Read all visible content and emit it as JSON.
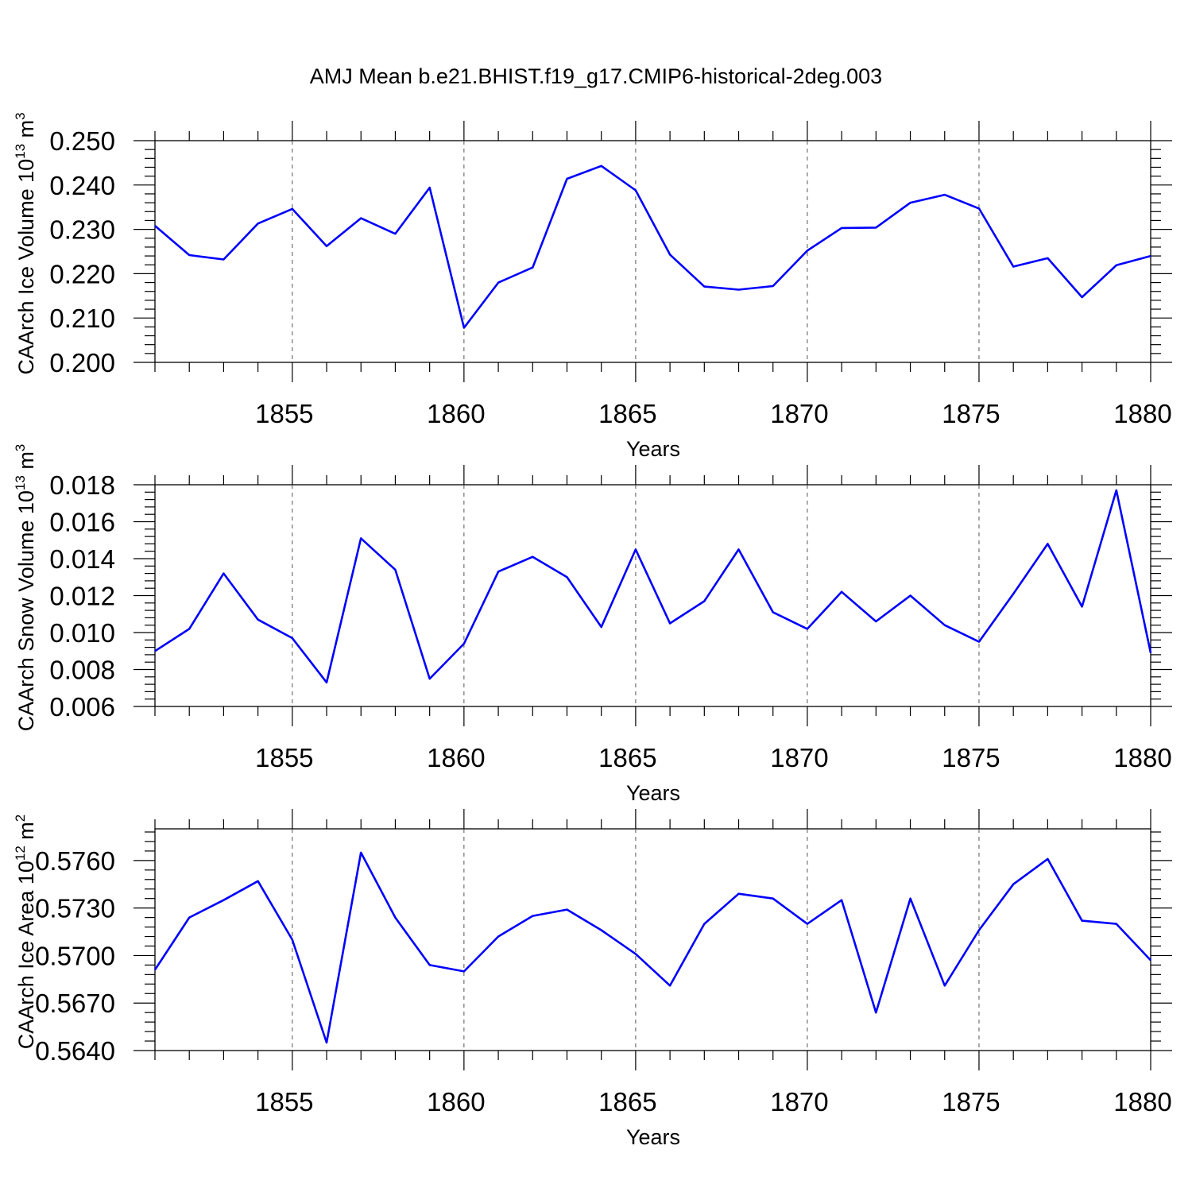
{
  "title": "AMJ Mean b.e21.BHIST.f19_g17.CMIP6-historical-2deg.003",
  "colors": {
    "line": "#0000ff",
    "grid": "#555555"
  },
  "chart_data": [
    {
      "type": "line",
      "name": "ice-volume",
      "xlabel": "Years",
      "ylabel_main": "CAArch Ice Volume 10",
      "ylabel_sup1": "13",
      "ylabel_mid": " m",
      "ylabel_sup2": "3",
      "xlim": [
        1851,
        1880
      ],
      "ylim": [
        0.2,
        0.25
      ],
      "xticks": [
        1855,
        1860,
        1865,
        1870,
        1875,
        1880
      ],
      "xtick_labels": [
        "1855",
        "1860",
        "1865",
        "1870",
        "1875",
        "1880"
      ],
      "yticks": [
        0.2,
        0.21,
        0.22,
        0.23,
        0.24,
        0.25
      ],
      "ytick_labels": [
        "0.200",
        "0.210",
        "0.220",
        "0.230",
        "0.240",
        "0.250"
      ],
      "x": [
        1851,
        1852,
        1853,
        1854,
        1855,
        1856,
        1857,
        1858,
        1859,
        1860,
        1861,
        1862,
        1863,
        1864,
        1865,
        1866,
        1867,
        1868,
        1869,
        1870,
        1871,
        1872,
        1873,
        1874,
        1875,
        1876,
        1877,
        1878,
        1879,
        1880
      ],
      "values": [
        0.2308,
        0.2242,
        0.2232,
        0.2313,
        0.2346,
        0.2262,
        0.2325,
        0.229,
        0.2394,
        0.2078,
        0.218,
        0.2214,
        0.2414,
        0.2443,
        0.2388,
        0.2243,
        0.2171,
        0.2164,
        0.2172,
        0.2252,
        0.2303,
        0.2304,
        0.236,
        0.2378,
        0.2347,
        0.2216,
        0.2235,
        0.2147,
        0.2219,
        0.224
      ],
      "grid": true
    },
    {
      "type": "line",
      "name": "snow-volume",
      "xlabel": "Years",
      "ylabel_main": "CAArch Snow Volume 10",
      "ylabel_sup1": "13",
      "ylabel_mid": " m",
      "ylabel_sup2": "3",
      "xlim": [
        1851,
        1880
      ],
      "ylim": [
        0.006,
        0.018
      ],
      "xticks": [
        1855,
        1860,
        1865,
        1870,
        1875,
        1880
      ],
      "xtick_labels": [
        "1855",
        "1860",
        "1865",
        "1870",
        "1875",
        "1880"
      ],
      "yticks": [
        0.006,
        0.008,
        0.01,
        0.012,
        0.014,
        0.016,
        0.018
      ],
      "ytick_labels": [
        "0.006",
        "0.008",
        "0.010",
        "0.012",
        "0.014",
        "0.016",
        "0.018"
      ],
      "x": [
        1851,
        1852,
        1853,
        1854,
        1855,
        1856,
        1857,
        1858,
        1859,
        1860,
        1861,
        1862,
        1863,
        1864,
        1865,
        1866,
        1867,
        1868,
        1869,
        1870,
        1871,
        1872,
        1873,
        1874,
        1875,
        1876,
        1877,
        1878,
        1879,
        1880
      ],
      "values": [
        0.009,
        0.0102,
        0.0132,
        0.0107,
        0.0097,
        0.0073,
        0.0151,
        0.0134,
        0.0075,
        0.0094,
        0.0133,
        0.0141,
        0.013,
        0.0103,
        0.0145,
        0.0105,
        0.0117,
        0.0145,
        0.0111,
        0.0102,
        0.0122,
        0.0106,
        0.012,
        0.0104,
        0.0095,
        0.0121,
        0.0148,
        0.0114,
        0.0177,
        0.0089
      ],
      "grid": true
    },
    {
      "type": "line",
      "name": "ice-area",
      "xlabel": "Years",
      "ylabel_main": "CAArch Ice Area 10",
      "ylabel_sup1": "12",
      "ylabel_mid": " m",
      "ylabel_sup2": "2",
      "xlim": [
        1851,
        1880
      ],
      "ylim": [
        0.564,
        0.578
      ],
      "xticks": [
        1855,
        1860,
        1865,
        1870,
        1875,
        1880
      ],
      "xtick_labels": [
        "1855",
        "1860",
        "1865",
        "1870",
        "1875",
        "1880"
      ],
      "yticks": [
        0.564,
        0.567,
        0.57,
        0.573,
        0.576
      ],
      "ytick_labels": [
        "0.5640",
        "0.5670",
        "0.5700",
        "0.5730",
        "0.5760"
      ],
      "x": [
        1851,
        1852,
        1853,
        1854,
        1855,
        1856,
        1857,
        1858,
        1859,
        1860,
        1861,
        1862,
        1863,
        1864,
        1865,
        1866,
        1867,
        1868,
        1869,
        1870,
        1871,
        1872,
        1873,
        1874,
        1875,
        1876,
        1877,
        1878,
        1879,
        1880
      ],
      "values": [
        0.5691,
        0.5724,
        0.5735,
        0.5747,
        0.571,
        0.5645,
        0.5765,
        0.5724,
        0.5694,
        0.569,
        0.5712,
        0.5725,
        0.5729,
        0.5716,
        0.5701,
        0.5681,
        0.572,
        0.5739,
        0.5736,
        0.572,
        0.5735,
        0.5664,
        0.5736,
        0.5681,
        0.5716,
        0.5745,
        0.5761,
        0.5722,
        0.572,
        0.5697
      ],
      "grid": true
    }
  ]
}
